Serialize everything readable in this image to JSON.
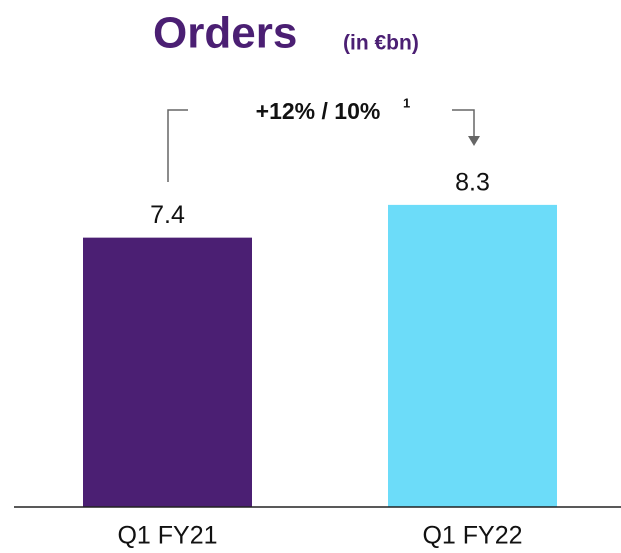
{
  "chart_data": {
    "type": "bar",
    "title": "Orders",
    "subtitle": "(in €bn)",
    "annotation": "+12% / 10%",
    "annotation_footnote": "1",
    "categories": [
      "Q1 FY21",
      "Q1 FY22"
    ],
    "values": [
      7.4,
      8.3
    ],
    "colors": [
      "#4b1f73",
      "#6cdcf9"
    ],
    "ylim": [
      0,
      10
    ]
  }
}
